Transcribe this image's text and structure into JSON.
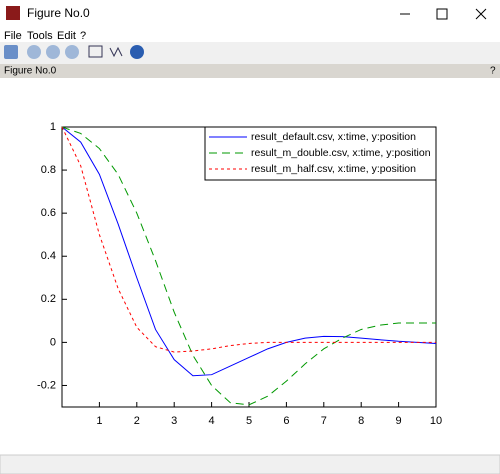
{
  "window": {
    "title": "Figure No.0",
    "menu": [
      "File",
      "Tools",
      "Edit",
      "?"
    ],
    "panel_title": "Figure No.0",
    "panel_help": "?"
  },
  "chart_data": {
    "type": "line",
    "x": [
      0,
      0.5,
      1,
      1.5,
      2,
      2.5,
      3,
      3.5,
      4,
      4.5,
      5,
      5.5,
      6,
      6.5,
      7,
      7.5,
      8,
      8.5,
      9,
      9.5,
      10
    ],
    "series": [
      {
        "name": "result_default.csv, x:time, y:position",
        "color": "#0000ff",
        "dash": "solid",
        "values": [
          1,
          0.93,
          0.78,
          0.55,
          0.3,
          0.06,
          -0.08,
          -0.155,
          -0.15,
          -0.11,
          -0.07,
          -0.03,
          0,
          0.02,
          0.028,
          0.027,
          0.02,
          0.012,
          0.005,
          0,
          -0.005
        ]
      },
      {
        "name": "result_m_double.csv, x:time, y:position",
        "color": "#009900",
        "dash": "dashed",
        "values": [
          1,
          0.97,
          0.9,
          0.78,
          0.6,
          0.38,
          0.14,
          -0.06,
          -0.2,
          -0.28,
          -0.29,
          -0.25,
          -0.18,
          -0.1,
          -0.03,
          0.02,
          0.06,
          0.08,
          0.09,
          0.09,
          0.09
        ]
      },
      {
        "name": "result_m_half.csv, x:time, y:position",
        "color": "#ff0000",
        "dash": "dotted",
        "values": [
          1,
          0.82,
          0.5,
          0.25,
          0.07,
          -0.02,
          -0.045,
          -0.04,
          -0.03,
          -0.015,
          -0.005,
          0,
          0,
          0,
          0,
          0,
          0,
          0,
          0,
          0,
          0
        ]
      }
    ],
    "xlim": [
      0,
      10
    ],
    "xticks": [
      1,
      2,
      3,
      4,
      5,
      6,
      7,
      8,
      9,
      10
    ],
    "ylim": [
      -0.3,
      1
    ],
    "yticks": [
      -0.2,
      0,
      0.2,
      0.4,
      0.6,
      0.8,
      1
    ],
    "legend": "upper right"
  }
}
